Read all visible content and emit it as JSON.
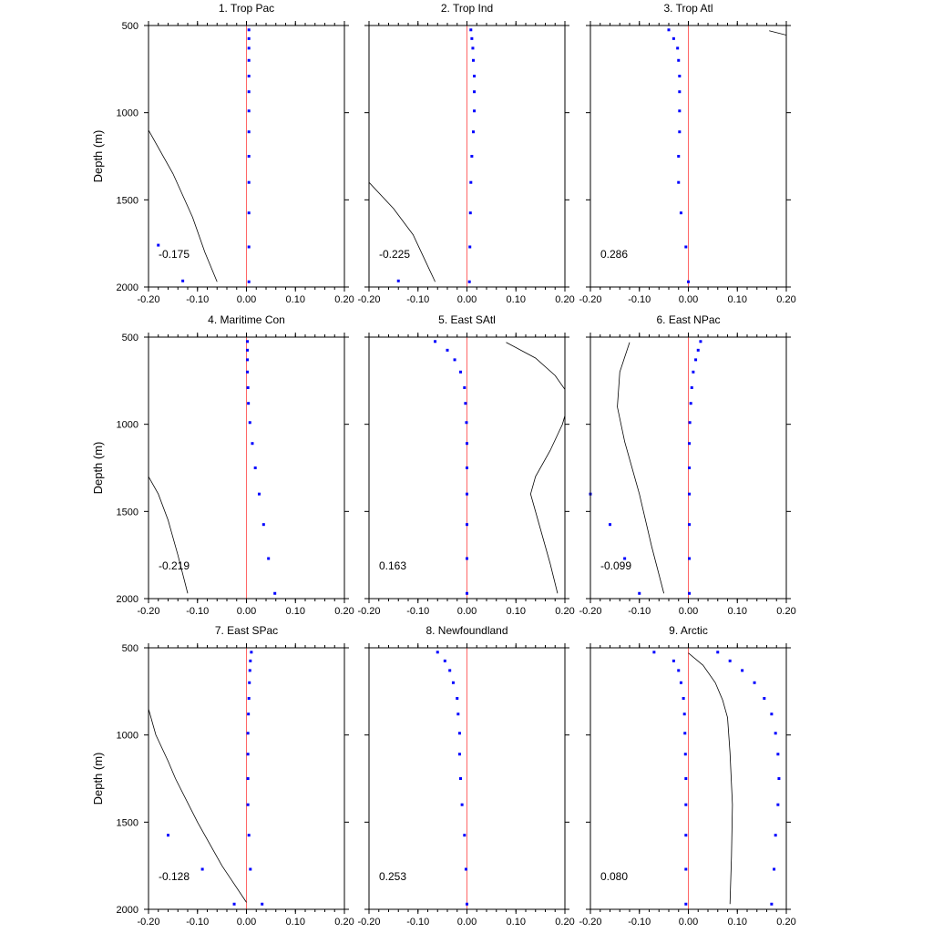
{
  "chart_data": [
    {
      "type": "scatter",
      "title": "1. Trop Pac",
      "annotation": "-0.175",
      "ylabel": "Depth (m)",
      "xlim": [
        -0.2,
        0.2
      ],
      "ylim": [
        500,
        2000
      ],
      "y_inverted": true,
      "xticks": [
        "-0.20",
        "-0.10",
        "0.00",
        "0.10",
        "0.20"
      ],
      "yticks": [
        "500",
        "1000",
        "1500",
        "2000"
      ],
      "dots": [
        [
          0.005,
          525
        ],
        [
          0.005,
          575
        ],
        [
          0.005,
          630
        ],
        [
          0.005,
          700
        ],
        [
          0.005,
          790
        ],
        [
          0.005,
          880
        ],
        [
          0.005,
          990
        ],
        [
          0.005,
          1110
        ],
        [
          0.005,
          1250
        ],
        [
          0.005,
          1400
        ],
        [
          0.005,
          1575
        ],
        [
          0.005,
          1770
        ],
        [
          0.005,
          1970
        ],
        [
          -0.18,
          1760
        ],
        [
          -0.13,
          1965
        ]
      ],
      "curve": [
        [
          -0.2,
          1100
        ],
        [
          -0.15,
          1350
        ],
        [
          -0.11,
          1600
        ],
        [
          -0.085,
          1800
        ],
        [
          -0.06,
          1970
        ]
      ]
    },
    {
      "type": "scatter",
      "title": "2. Trop Ind",
      "annotation": "-0.225",
      "ylabel": "",
      "xlim": [
        -0.2,
        0.2
      ],
      "ylim": [
        500,
        2000
      ],
      "y_inverted": true,
      "xticks": [
        "-0.20",
        "-0.10",
        "0.00",
        "0.10",
        "0.20"
      ],
      "yticks": [],
      "dots": [
        [
          0.008,
          525
        ],
        [
          0.01,
          575
        ],
        [
          0.012,
          630
        ],
        [
          0.013,
          700
        ],
        [
          0.015,
          790
        ],
        [
          0.015,
          880
        ],
        [
          0.015,
          990
        ],
        [
          0.013,
          1110
        ],
        [
          0.01,
          1250
        ],
        [
          0.008,
          1400
        ],
        [
          0.007,
          1575
        ],
        [
          0.006,
          1770
        ],
        [
          0.005,
          1970
        ],
        [
          -0.14,
          1965
        ]
      ],
      "curve": [
        [
          -0.2,
          1400
        ],
        [
          -0.15,
          1550
        ],
        [
          -0.11,
          1700
        ],
        [
          -0.085,
          1850
        ],
        [
          -0.065,
          1970
        ]
      ]
    },
    {
      "type": "scatter",
      "title": "3. Trop Atl",
      "annotation": "0.286",
      "ylabel": "",
      "xlim": [
        -0.2,
        0.2
      ],
      "ylim": [
        500,
        2000
      ],
      "y_inverted": true,
      "xticks": [
        "-0.20",
        "-0.10",
        "0.00",
        "0.10",
        "0.20"
      ],
      "yticks": [],
      "dots": [
        [
          -0.04,
          525
        ],
        [
          -0.03,
          575
        ],
        [
          -0.022,
          630
        ],
        [
          -0.02,
          700
        ],
        [
          -0.018,
          790
        ],
        [
          -0.018,
          880
        ],
        [
          -0.018,
          990
        ],
        [
          -0.018,
          1110
        ],
        [
          -0.02,
          1250
        ],
        [
          -0.02,
          1400
        ],
        [
          -0.015,
          1575
        ],
        [
          -0.005,
          1770
        ],
        [
          0,
          1970
        ]
      ],
      "curve": [
        [
          0.165,
          530
        ],
        [
          0.2,
          555
        ]
      ]
    },
    {
      "type": "scatter",
      "title": "4. Maritime Con",
      "annotation": "-0.219",
      "ylabel": "Depth (m)",
      "xlim": [
        -0.2,
        0.2
      ],
      "ylim": [
        500,
        2000
      ],
      "y_inverted": true,
      "xticks": [
        "-0.20",
        "-0.10",
        "0.00",
        "0.10",
        "0.20"
      ],
      "yticks": [
        "500",
        "1000",
        "1500",
        "2000"
      ],
      "dots": [
        [
          0.002,
          525
        ],
        [
          0.002,
          575
        ],
        [
          0.002,
          630
        ],
        [
          0.002,
          700
        ],
        [
          0.003,
          790
        ],
        [
          0.004,
          880
        ],
        [
          0.007,
          990
        ],
        [
          0.012,
          1110
        ],
        [
          0.018,
          1250
        ],
        [
          0.026,
          1400
        ],
        [
          0.035,
          1575
        ],
        [
          0.045,
          1770
        ],
        [
          0.058,
          1970
        ]
      ],
      "curve": [
        [
          -0.2,
          1300
        ],
        [
          -0.18,
          1400
        ],
        [
          -0.16,
          1550
        ],
        [
          -0.14,
          1750
        ],
        [
          -0.12,
          1970
        ]
      ]
    },
    {
      "type": "scatter",
      "title": "5. East SAtl",
      "annotation": "0.163",
      "ylabel": "",
      "xlim": [
        -0.2,
        0.2
      ],
      "ylim": [
        500,
        2000
      ],
      "y_inverted": true,
      "xticks": [
        "-0.20",
        "-0.10",
        "0.00",
        "0.10",
        "0.20"
      ],
      "yticks": [],
      "dots": [
        [
          -0.065,
          525
        ],
        [
          -0.04,
          575
        ],
        [
          -0.025,
          630
        ],
        [
          -0.013,
          700
        ],
        [
          -0.005,
          790
        ],
        [
          -0.003,
          880
        ],
        [
          -0.001,
          990
        ],
        [
          0,
          1110
        ],
        [
          0,
          1250
        ],
        [
          0,
          1400
        ],
        [
          0,
          1575
        ],
        [
          0,
          1770
        ],
        [
          0,
          1970
        ]
      ],
      "curve": [
        [
          0.08,
          530
        ],
        [
          0.14,
          620
        ],
        [
          0.18,
          720
        ],
        [
          0.2,
          800
        ],
        [
          0.205,
          900
        ],
        [
          0.195,
          1000
        ],
        [
          0.17,
          1150
        ],
        [
          0.14,
          1300
        ],
        [
          0.13,
          1400
        ],
        [
          0.15,
          1600
        ],
        [
          0.17,
          1800
        ],
        [
          0.185,
          1970
        ]
      ]
    },
    {
      "type": "scatter",
      "title": "6. East NPac",
      "annotation": "-0.099",
      "ylabel": "",
      "xlim": [
        -0.2,
        0.2
      ],
      "ylim": [
        500,
        2000
      ],
      "y_inverted": true,
      "xticks": [
        "-0.20",
        "-0.10",
        "0.00",
        "0.10",
        "0.20"
      ],
      "yticks": [],
      "dots": [
        [
          0.025,
          525
        ],
        [
          0.02,
          575
        ],
        [
          0.015,
          630
        ],
        [
          0.01,
          700
        ],
        [
          0.007,
          790
        ],
        [
          0.005,
          880
        ],
        [
          0.003,
          990
        ],
        [
          0.002,
          1110
        ],
        [
          0.002,
          1250
        ],
        [
          0.002,
          1400
        ],
        [
          0.002,
          1575
        ],
        [
          0.002,
          1770
        ],
        [
          0.002,
          1970
        ],
        [
          -0.2,
          1400
        ],
        [
          -0.16,
          1575
        ],
        [
          -0.13,
          1770
        ],
        [
          -0.1,
          1970
        ]
      ],
      "curve": [
        [
          -0.12,
          530
        ],
        [
          -0.14,
          700
        ],
        [
          -0.145,
          900
        ],
        [
          -0.13,
          1100
        ],
        [
          -0.1,
          1400
        ],
        [
          -0.075,
          1700
        ],
        [
          -0.05,
          1970
        ]
      ]
    },
    {
      "type": "scatter",
      "title": "7. East SPac",
      "annotation": "-0.128",
      "ylabel": "Depth (m)",
      "xlim": [
        -0.2,
        0.2
      ],
      "ylim": [
        500,
        2000
      ],
      "y_inverted": true,
      "xticks": [
        "-0.20",
        "-0.10",
        "0.00",
        "0.10",
        "0.20"
      ],
      "yticks": [
        "500",
        "1000",
        "1500",
        "2000"
      ],
      "dots": [
        [
          0.01,
          525
        ],
        [
          0.008,
          575
        ],
        [
          0.007,
          630
        ],
        [
          0.006,
          700
        ],
        [
          0.005,
          790
        ],
        [
          0.004,
          880
        ],
        [
          0.003,
          990
        ],
        [
          0.003,
          1110
        ],
        [
          0.003,
          1250
        ],
        [
          0.003,
          1400
        ],
        [
          0.005,
          1575
        ],
        [
          0.008,
          1770
        ],
        [
          0.032,
          1970
        ],
        [
          -0.16,
          1575
        ],
        [
          -0.09,
          1770
        ],
        [
          -0.025,
          1970
        ]
      ],
      "curve": [
        [
          -0.2,
          850
        ],
        [
          -0.185,
          1000
        ],
        [
          -0.16,
          1150
        ],
        [
          -0.145,
          1250
        ],
        [
          -0.1,
          1500
        ],
        [
          -0.05,
          1750
        ],
        [
          0,
          1960
        ]
      ]
    },
    {
      "type": "scatter",
      "title": "8. Newfoundland",
      "annotation": "0.253",
      "ylabel": "",
      "xlim": [
        -0.2,
        0.2
      ],
      "ylim": [
        500,
        2000
      ],
      "y_inverted": true,
      "xticks": [
        "-0.20",
        "-0.10",
        "0.00",
        "0.10",
        "0.20"
      ],
      "yticks": [],
      "dots": [
        [
          -0.06,
          525
        ],
        [
          -0.045,
          575
        ],
        [
          -0.035,
          630
        ],
        [
          -0.028,
          700
        ],
        [
          -0.02,
          790
        ],
        [
          -0.018,
          880
        ],
        [
          -0.015,
          990
        ],
        [
          -0.015,
          1110
        ],
        [
          -0.013,
          1250
        ],
        [
          -0.01,
          1400
        ],
        [
          -0.005,
          1575
        ],
        [
          -0.002,
          1770
        ],
        [
          0,
          1970
        ]
      ],
      "curve": []
    },
    {
      "type": "scatter",
      "title": "9. Arctic",
      "annotation": "0.080",
      "ylabel": "",
      "xlim": [
        -0.2,
        0.2
      ],
      "ylim": [
        500,
        2000
      ],
      "y_inverted": true,
      "xticks": [
        "-0.20",
        "-0.10",
        "0.00",
        "0.10",
        "0.20"
      ],
      "yticks": [],
      "dots": [
        [
          -0.07,
          525
        ],
        [
          -0.03,
          575
        ],
        [
          -0.02,
          630
        ],
        [
          -0.015,
          700
        ],
        [
          -0.01,
          790
        ],
        [
          -0.008,
          880
        ],
        [
          -0.007,
          990
        ],
        [
          -0.006,
          1110
        ],
        [
          -0.005,
          1250
        ],
        [
          -0.005,
          1400
        ],
        [
          -0.005,
          1575
        ],
        [
          -0.005,
          1770
        ],
        [
          -0.005,
          1970
        ],
        [
          0.06,
          525
        ],
        [
          0.085,
          575
        ],
        [
          0.11,
          630
        ],
        [
          0.135,
          700
        ],
        [
          0.155,
          790
        ],
        [
          0.17,
          880
        ],
        [
          0.178,
          990
        ],
        [
          0.183,
          1110
        ],
        [
          0.185,
          1250
        ],
        [
          0.183,
          1400
        ],
        [
          0.178,
          1575
        ],
        [
          0.175,
          1770
        ],
        [
          0.17,
          1970
        ]
      ],
      "curve": [
        [
          0,
          530
        ],
        [
          0.03,
          600
        ],
        [
          0.055,
          700
        ],
        [
          0.07,
          800
        ],
        [
          0.08,
          900
        ],
        [
          0.085,
          1100
        ],
        [
          0.09,
          1400
        ],
        [
          0.088,
          1700
        ],
        [
          0.085,
          1970
        ]
      ]
    }
  ]
}
